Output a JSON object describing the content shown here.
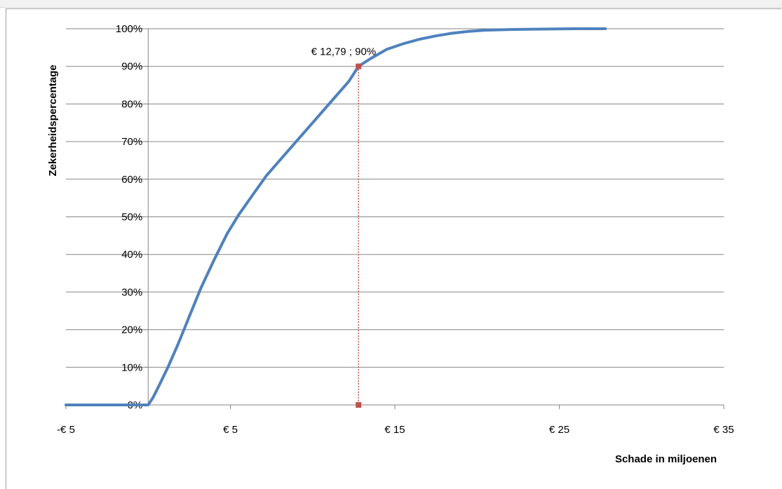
{
  "chart_data": {
    "type": "line",
    "title": "",
    "xlabel": "Schade in miljoenen",
    "ylabel": "Zekerheidspercentage",
    "xlim": [
      -5,
      35
    ],
    "ylim": [
      0,
      1
    ],
    "x_ticks": [
      -5,
      5,
      15,
      25,
      35
    ],
    "x_tick_labels": [
      "-€ 5",
      "€ 5",
      "€ 15",
      "€ 25",
      "€ 35"
    ],
    "y_ticks": [
      0,
      0.1,
      0.2,
      0.3,
      0.4,
      0.5,
      0.6,
      0.7,
      0.8,
      0.9,
      1.0
    ],
    "y_tick_labels": [
      "0%",
      "10%",
      "20%",
      "30%",
      "40%",
      "50%",
      "60%",
      "70%",
      "80%",
      "90%",
      "100%"
    ],
    "grid": true,
    "legend": "none",
    "series": [
      {
        "color": "#4f81bd",
        "x": [
          -5,
          0,
          0.3,
          0.7,
          1.2,
          1.8,
          2.5,
          3.2,
          4.0,
          4.8,
          5.5,
          6.3,
          7.2,
          8.2,
          9.2,
          10.2,
          11.2,
          12.2,
          12.79,
          13.5,
          14.5,
          15.5,
          16.5,
          17.5,
          18.5,
          19.5,
          20.5,
          22,
          24,
          26,
          27.8
        ],
        "y": [
          0,
          0,
          0.02,
          0.055,
          0.1,
          0.16,
          0.235,
          0.31,
          0.385,
          0.455,
          0.505,
          0.555,
          0.61,
          0.66,
          0.71,
          0.76,
          0.81,
          0.86,
          0.9,
          0.92,
          0.945,
          0.96,
          0.972,
          0.981,
          0.988,
          0.993,
          0.996,
          0.998,
          0.999,
          1.0,
          1.0
        ]
      }
    ],
    "marker": {
      "x": 12.79,
      "y": 0.9,
      "label": "€ 12,79 ; 90%",
      "color": "#c0504d"
    }
  }
}
